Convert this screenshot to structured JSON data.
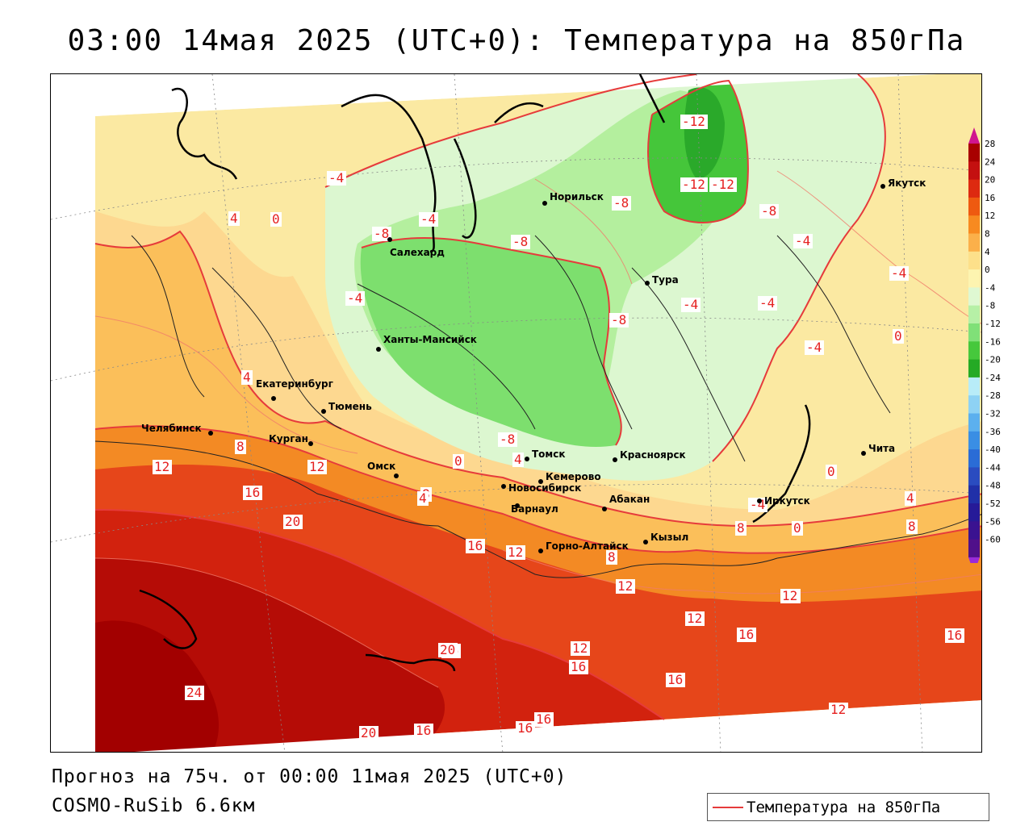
{
  "title": "03:00 14мая 2025 (UTC+0): Температура на 850гПа",
  "footer": {
    "forecast": "Прогноз на 75ч. от 00:00 11мая 2025 (UTC+0)",
    "model": "COSMO-RuSib 6.6км"
  },
  "legend": {
    "label": "Температура на 850гПа",
    "color": "#e63b3b"
  },
  "colorbar": {
    "labels": [
      "28",
      "24",
      "20",
      "16",
      "12",
      "8",
      "4",
      "0",
      "-4",
      "-8",
      "-12",
      "-16",
      "-20",
      "-24",
      "-28",
      "-32",
      "-36",
      "-40",
      "-44",
      "-48",
      "-52",
      "-56",
      "-60"
    ],
    "colors": [
      "#a80000",
      "#c41010",
      "#dd2a10",
      "#ee5a10",
      "#f78a20",
      "#fbb04a",
      "#fde08a",
      "#fdf4b0",
      "#dff8d2",
      "#b6f0a6",
      "#80e078",
      "#46c83c",
      "#25aa25",
      "#b8ecf8",
      "#8ed2f4",
      "#5cb0ee",
      "#3a8ee4",
      "#2a6cd6",
      "#2a4cc0",
      "#2030a8",
      "#261a98",
      "#3a1290",
      "#50108a"
    ],
    "top_color": "#d0158e",
    "bottom_color": "#9a2ad8"
  },
  "cities": [
    {
      "name": "Салехард"
    },
    {
      "name": "Норильск"
    },
    {
      "name": "Тура"
    },
    {
      "name": "Якутск"
    },
    {
      "name": "Ханты-Мансийск"
    },
    {
      "name": "Екатеринбург"
    },
    {
      "name": "Тюмень"
    },
    {
      "name": "Челябинск"
    },
    {
      "name": "Курган"
    },
    {
      "name": "Омск"
    },
    {
      "name": "Новосибирск"
    },
    {
      "name": "Томск"
    },
    {
      "name": "Кемерово"
    },
    {
      "name": "Красноярск"
    },
    {
      "name": "Барнаул"
    },
    {
      "name": "Абакан"
    },
    {
      "name": "Горно-Алтайск"
    },
    {
      "name": "Кызыл"
    },
    {
      "name": "Иркутск"
    },
    {
      "name": "Чита"
    }
  ],
  "contour_labels": [
    "-12",
    "-12",
    "-4",
    "4",
    "-4",
    "-8",
    "-8",
    "-8",
    "-8",
    "-4",
    "-4",
    "-4",
    "-4",
    "-8",
    "-4",
    "-4",
    "0",
    "4",
    "4",
    "0",
    "8",
    "12",
    "12",
    "16",
    "20",
    "16",
    "12",
    "12",
    "16",
    "12",
    "12",
    "12",
    "16",
    "16",
    "16",
    "20",
    "24",
    "20",
    "16",
    "16",
    "16",
    "12",
    "8",
    "-8",
    "0",
    "4",
    "0",
    "4",
    "8",
    "8",
    "-4",
    "0",
    "8",
    "16",
    "12",
    "-4",
    "-8",
    "-12",
    "4",
    "0"
  ]
}
